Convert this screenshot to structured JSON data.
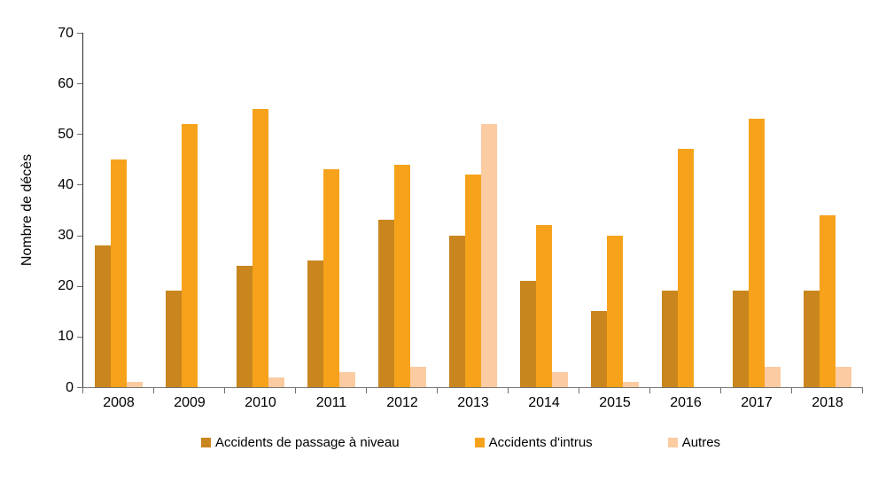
{
  "chart_data": {
    "type": "bar",
    "title": "",
    "xlabel": "",
    "ylabel": "Nombre de décès",
    "ylim": [
      0,
      70
    ],
    "yticks": [
      0,
      10,
      20,
      30,
      40,
      50,
      60,
      70
    ],
    "grid": false,
    "legend_position": "bottom",
    "categories": [
      "2008",
      "2009",
      "2010",
      "2011",
      "2012",
      "2013",
      "2014",
      "2015",
      "2016",
      "2017",
      "2018"
    ],
    "series": [
      {
        "name": "Accidents de passage à niveau",
        "color": "#C9861E",
        "values": [
          28,
          19,
          24,
          25,
          33,
          30,
          21,
          15,
          19,
          19,
          19
        ]
      },
      {
        "name": "Accidents d'intrus",
        "color": "#F7A21B",
        "values": [
          45,
          52,
          55,
          43,
          44,
          42,
          32,
          30,
          47,
          53,
          34
        ]
      },
      {
        "name": "Autres",
        "color": "#FBCBA1",
        "values": [
          1,
          0,
          2,
          3,
          4,
          52,
          3,
          1,
          0,
          4,
          4
        ]
      }
    ],
    "colors": {
      "y_axis_line": "#2b2b2b",
      "x_axis_line": "#757575",
      "tick": "#6e6e6e",
      "text": "#000000"
    }
  }
}
